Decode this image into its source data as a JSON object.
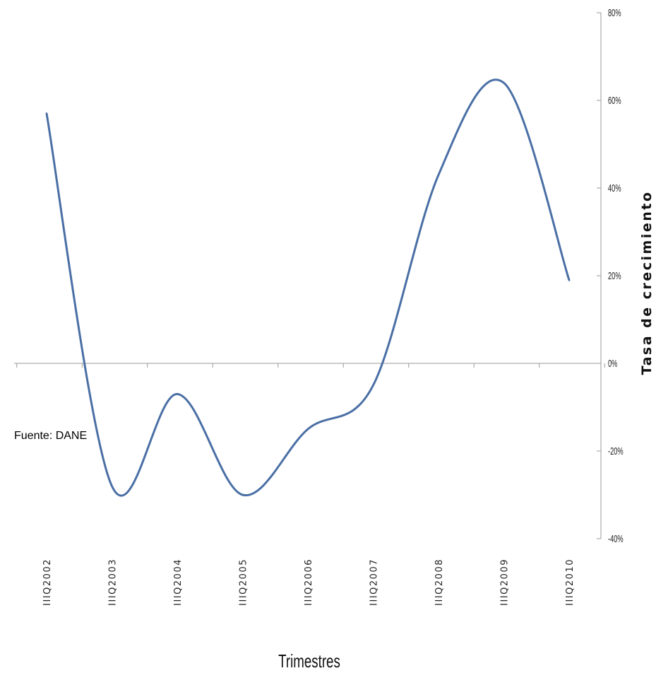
{
  "chart_data": {
    "type": "line",
    "source_note": "Fuente: DANE",
    "xlabel": "Trimestres",
    "ylabel": "Tasa de crecimiento",
    "ylim": [
      -0.4,
      0.8
    ],
    "y_ticks": [
      {
        "value": 0.8,
        "label": "80%"
      },
      {
        "value": 0.6,
        "label": "60%"
      },
      {
        "value": 0.4,
        "label": "40%"
      },
      {
        "value": 0.2,
        "label": "20%"
      },
      {
        "value": 0.0,
        "label": "0%"
      },
      {
        "value": -0.2,
        "label": "-20%"
      },
      {
        "value": -0.4,
        "label": "-40%"
      }
    ],
    "categories": [
      "IIIQ2002",
      "IIIQ2003",
      "IIIQ2004",
      "IIIQ2005",
      "IIIQ2006",
      "IIIQ2007",
      "IIIQ2008",
      "IIIQ2009",
      "IIIQ2010"
    ],
    "series": [
      {
        "values": [
          0.57,
          -0.28,
          -0.07,
          -0.3,
          -0.15,
          -0.05,
          0.43,
          0.64,
          0.19
        ],
        "color": "#4a6fa5"
      }
    ],
    "y_axis_position": "right",
    "grid": false,
    "legend": "none",
    "line_style": "smooth"
  }
}
